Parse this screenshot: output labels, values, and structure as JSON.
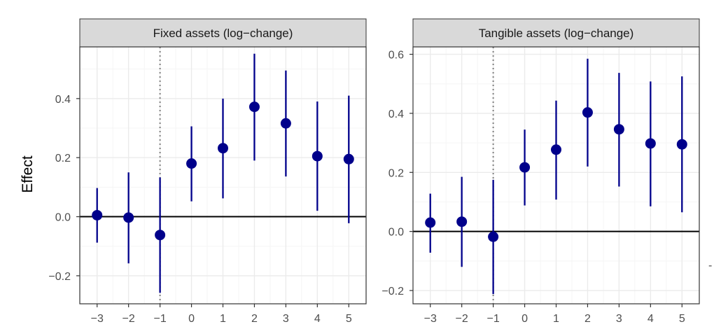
{
  "figure": {
    "ylabel": "Effect"
  },
  "chart_data": [
    {
      "type": "scatter",
      "title": "Fixed assets (log−change)",
      "ylabel": "Effect",
      "x_ticks": [
        "−3",
        "−2",
        "−1",
        "0",
        "1",
        "2",
        "3",
        "4",
        "5"
      ],
      "y_ticks": [
        "−0.2",
        "0.0",
        "0.2",
        "0.4"
      ],
      "xlim": [
        -3.55,
        5.55
      ],
      "ylim": [
        -0.295,
        0.575
      ],
      "y_tick_values": [
        -0.2,
        0.0,
        0.2,
        0.4
      ],
      "y_minor_values": [
        -0.1,
        0.1,
        0.3,
        0.5
      ],
      "reference_line_x": -1,
      "zero_line_y": 0,
      "grid": true,
      "series": [
        {
          "x": [
            -3,
            -2,
            -1,
            0,
            1,
            2,
            3,
            4,
            5
          ],
          "estimate": [
            0.005,
            -0.003,
            -0.062,
            0.18,
            0.232,
            0.372,
            0.316,
            0.205,
            0.195
          ],
          "ci_low": [
            -0.088,
            -0.158,
            -0.258,
            0.052,
            0.062,
            0.19,
            0.136,
            0.02,
            -0.022
          ],
          "ci_high": [
            0.097,
            0.15,
            0.133,
            0.306,
            0.4,
            0.552,
            0.495,
            0.39,
            0.41
          ]
        }
      ]
    },
    {
      "type": "scatter",
      "title": "Tangible assets (log−change)",
      "ylabel": "",
      "x_ticks": [
        "−3",
        "−2",
        "−1",
        "0",
        "1",
        "2",
        "3",
        "4",
        "5"
      ],
      "y_ticks": [
        "−0.2",
        "0.0",
        "0.2",
        "0.4",
        "0.6"
      ],
      "xlim": [
        -3.55,
        5.55
      ],
      "ylim": [
        -0.245,
        0.625
      ],
      "y_tick_values": [
        -0.2,
        0.0,
        0.2,
        0.4,
        0.6
      ],
      "y_minor_values": [
        -0.1,
        0.1,
        0.3,
        0.5
      ],
      "reference_line_x": -1,
      "zero_line_y": 0,
      "grid": true,
      "series": [
        {
          "x": [
            -3,
            -2,
            -1,
            0,
            1,
            2,
            3,
            4,
            5
          ],
          "estimate": [
            0.03,
            0.033,
            -0.018,
            0.217,
            0.277,
            0.403,
            0.346,
            0.298,
            0.295
          ],
          "ci_low": [
            -0.072,
            -0.12,
            -0.212,
            0.088,
            0.108,
            0.22,
            0.152,
            0.085,
            0.065
          ],
          "ci_high": [
            0.128,
            0.185,
            0.175,
            0.345,
            0.443,
            0.585,
            0.537,
            0.508,
            0.525
          ]
        }
      ]
    }
  ],
  "colors": {
    "point": "#00008b",
    "errorbar": "#00008b",
    "strip_fill": "#d9d9d9",
    "strip_border": "#333333",
    "panel_border": "#333333",
    "grid_major": "#ebebeb",
    "grid_minor": "#f5f5f5",
    "zero_line": "#000000",
    "ref_line": "#7f7f7f"
  }
}
